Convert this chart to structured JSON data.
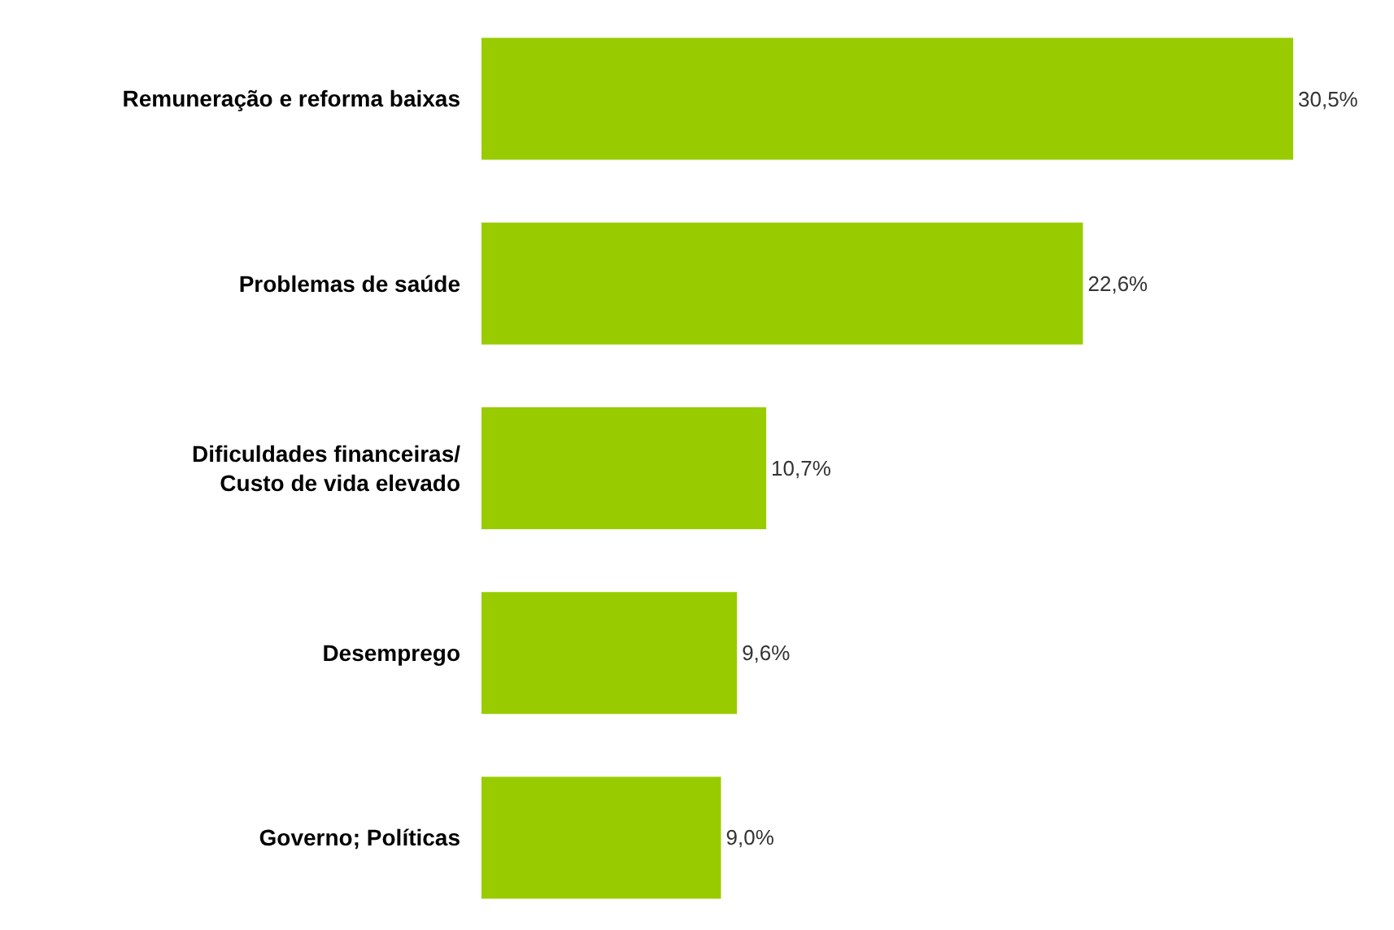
{
  "chart_data": {
    "type": "bar",
    "orientation": "horizontal",
    "categories": [
      "Remuneração e reforma baixas",
      "Problemas de saúde",
      "Dificuldades financeiras/\nCusto de vida elevado",
      "Desemprego",
      "Governo; Políticas"
    ],
    "values": [
      30.5,
      22.6,
      10.7,
      9.6,
      9.0
    ],
    "value_labels": [
      "30,5%",
      "22,6%",
      "10,7%",
      "9,6%",
      "9,0%"
    ],
    "color": "#99cc00",
    "legend": false
  }
}
